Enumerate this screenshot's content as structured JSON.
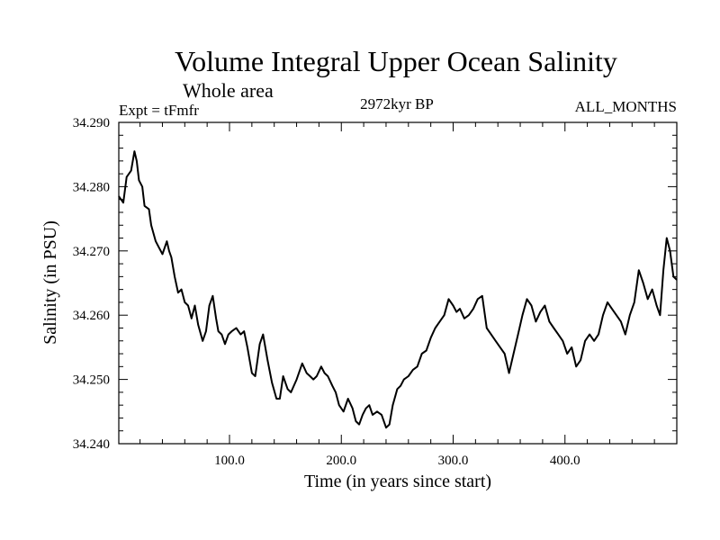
{
  "chart_data": {
    "type": "line",
    "title": "Volume Integral Upper Ocean Salinity",
    "subtitle": "Whole area",
    "annotations": {
      "left": "Expt = tFmfr",
      "center": "2972kyr BP",
      "right": "ALL_MONTHS"
    },
    "xlabel": "Time (in years since start)",
    "ylabel": "Salinity (in PSU)",
    "xlim": [
      1,
      500
    ],
    "ylim": [
      34.24,
      34.29
    ],
    "xticks": [
      100,
      200,
      300,
      400
    ],
    "xtick_labels": [
      "100.0",
      "200.0",
      "300.0",
      "400.0"
    ],
    "yticks": [
      34.24,
      34.25,
      34.26,
      34.27,
      34.28,
      34.29
    ],
    "ytick_labels": [
      "34.240",
      "34.250",
      "34.260",
      "34.270",
      "34.280",
      "34.290"
    ],
    "grid": false,
    "series": [
      {
        "name": "salinity",
        "color": "#000000",
        "x": [
          1,
          5,
          8,
          12,
          15,
          17,
          19,
          22,
          24,
          28,
          30,
          34,
          37,
          40,
          44,
          46,
          48,
          51,
          54,
          57,
          60,
          63,
          66,
          69,
          72,
          76,
          79,
          82,
          85,
          88,
          90,
          93,
          96,
          99,
          102,
          106,
          110,
          113,
          116,
          120,
          123,
          127,
          130,
          134,
          138,
          142,
          145,
          148,
          152,
          155,
          160,
          165,
          169,
          172,
          175,
          178,
          182,
          185,
          188,
          192,
          195,
          198,
          202,
          206,
          210,
          213,
          216,
          219,
          222,
          225,
          228,
          232,
          236,
          240,
          243,
          246,
          250,
          253,
          256,
          260,
          264,
          268,
          272,
          276,
          280,
          284,
          288,
          292,
          296,
          300,
          303,
          306,
          310,
          314,
          318,
          322,
          326,
          330,
          334,
          338,
          342,
          346,
          350,
          354,
          358,
          362,
          366,
          370,
          374,
          378,
          382,
          386,
          390,
          394,
          398,
          402,
          406,
          410,
          414,
          418,
          422,
          426,
          430,
          434,
          438,
          442,
          446,
          450,
          454,
          458,
          462,
          466,
          470,
          474,
          478,
          482,
          485,
          488,
          491,
          494,
          497,
          500
        ],
        "values": [
          34.2785,
          34.2775,
          34.2815,
          34.2825,
          34.2855,
          34.284,
          34.281,
          34.28,
          34.277,
          34.2765,
          34.274,
          34.2715,
          34.2705,
          34.2695,
          34.2715,
          34.27,
          34.269,
          34.266,
          34.2635,
          34.264,
          34.262,
          34.2615,
          34.2595,
          34.2615,
          34.2585,
          34.256,
          34.2575,
          34.2615,
          34.263,
          34.2595,
          34.2575,
          34.257,
          34.2555,
          34.257,
          34.2575,
          34.258,
          34.257,
          34.2575,
          34.255,
          34.251,
          34.2505,
          34.2555,
          34.257,
          34.253,
          34.2495,
          34.247,
          34.247,
          34.2505,
          34.2485,
          34.248,
          34.25,
          34.2525,
          34.251,
          34.2505,
          34.25,
          34.2505,
          34.252,
          34.251,
          34.2505,
          34.249,
          34.248,
          34.246,
          34.245,
          34.247,
          34.2455,
          34.2435,
          34.243,
          34.2445,
          34.2455,
          34.246,
          34.2445,
          34.245,
          34.2445,
          34.2425,
          34.243,
          34.246,
          34.2485,
          34.249,
          34.25,
          34.2505,
          34.2515,
          34.252,
          34.254,
          34.2545,
          34.2565,
          34.258,
          34.259,
          34.26,
          34.2625,
          34.2615,
          34.2605,
          34.261,
          34.2595,
          34.26,
          34.261,
          34.2625,
          34.263,
          34.258,
          34.257,
          34.256,
          34.255,
          34.254,
          34.251,
          34.254,
          34.257,
          34.26,
          34.2625,
          34.2615,
          34.259,
          34.2605,
          34.2615,
          34.259,
          34.258,
          34.257,
          34.256,
          34.254,
          34.255,
          34.252,
          34.253,
          34.256,
          34.257,
          34.256,
          34.257,
          34.26,
          34.262,
          34.261,
          34.26,
          34.259,
          34.257,
          34.26,
          34.262,
          34.267,
          34.265,
          34.2625,
          34.264,
          34.2615,
          34.26,
          34.267,
          34.272,
          34.27,
          34.266,
          34.2655
        ]
      }
    ]
  }
}
